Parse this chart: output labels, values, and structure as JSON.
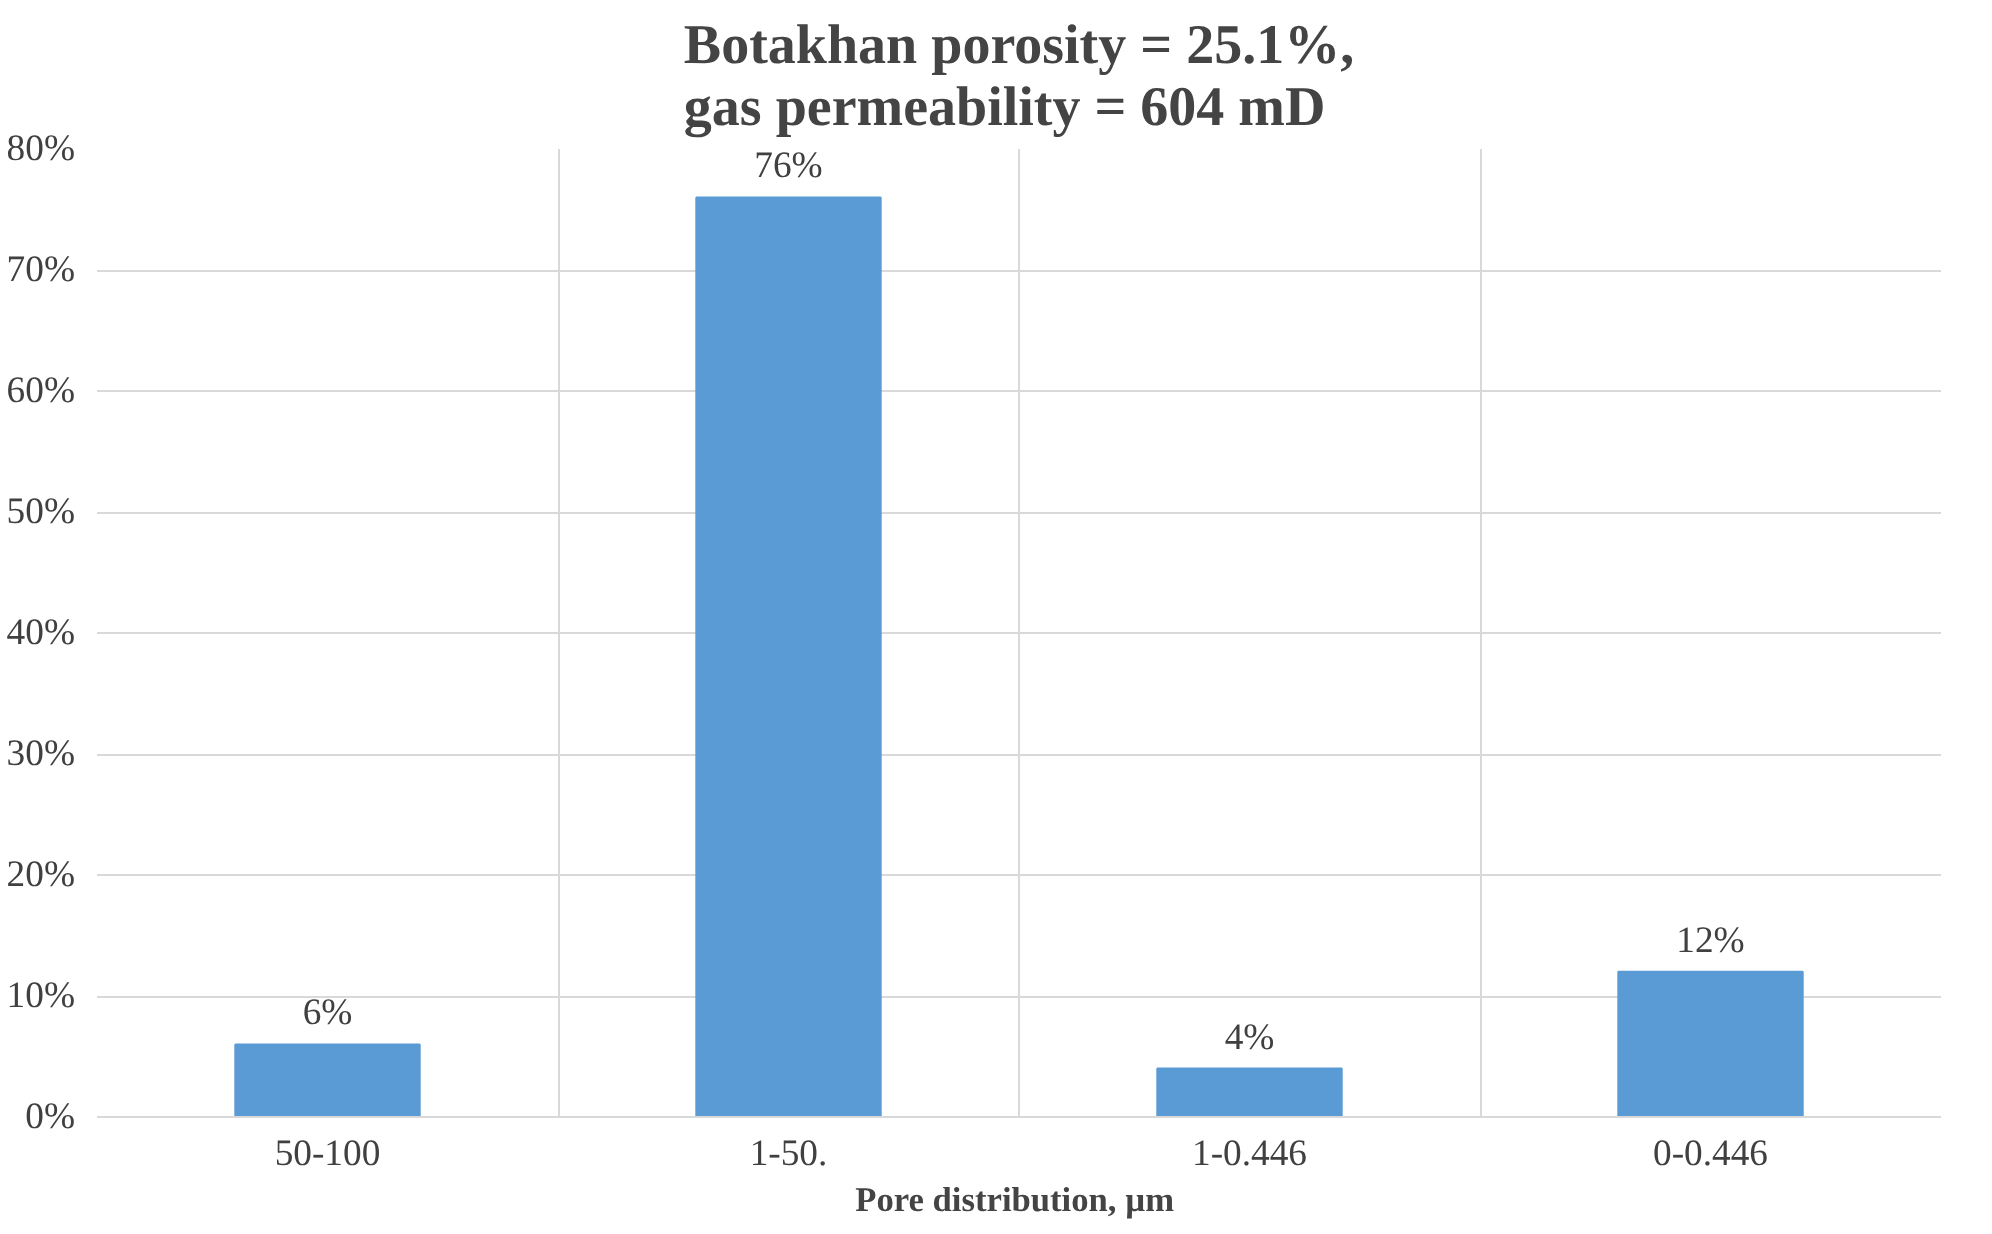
{
  "chart_data": {
    "type": "bar",
    "title": "Botakhan porosity = 25.1%,\ngas permeability = 604 mD",
    "xlabel": "Pore distribution,  µm",
    "categories": [
      "50-100",
      "1-50.",
      "1-0.446",
      "0-0.446"
    ],
    "values": [
      6,
      76,
      4,
      12
    ],
    "color": "#5b9bd5",
    "value_labels": [
      "6%",
      "76%",
      "4%",
      "12%"
    ],
    "ylim": [
      0,
      80
    ],
    "yticks": [
      {
        "value": 0,
        "label": "0%"
      },
      {
        "value": 10,
        "label": "10%"
      },
      {
        "value": 20,
        "label": "20%"
      },
      {
        "value": 30,
        "label": "30%"
      },
      {
        "value": 40,
        "label": "40%"
      },
      {
        "value": 50,
        "label": "50%"
      },
      {
        "value": 60,
        "label": "60%"
      },
      {
        "value": 70,
        "label": "70%"
      },
      {
        "value": 80,
        "label": "80%"
      }
    ],
    "grid": true
  }
}
